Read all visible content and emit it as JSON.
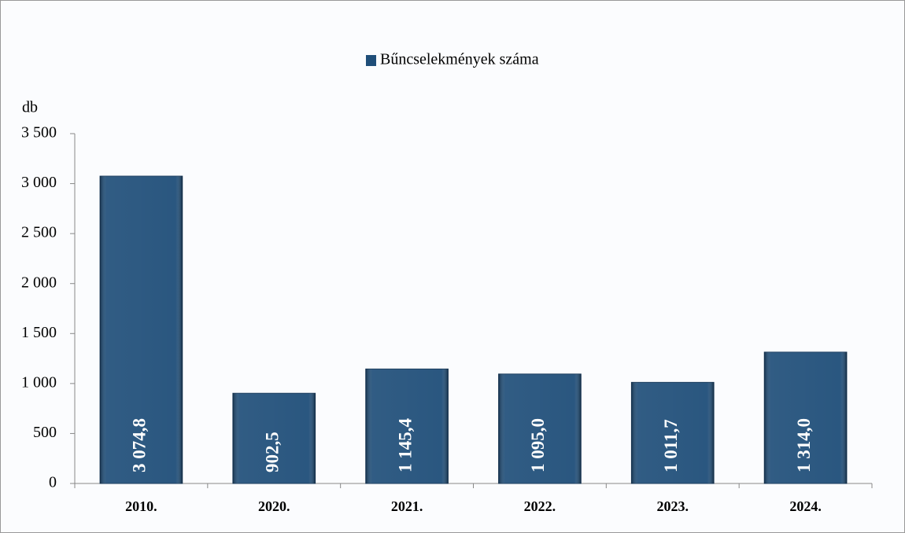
{
  "chart_data": {
    "type": "bar",
    "legend": "Bűncselekmények száma",
    "y_label": "db",
    "categories": [
      "2010.",
      "2020.",
      "2021.",
      "2022.",
      "2023.",
      "2024."
    ],
    "values": [
      3074.8,
      902.5,
      1145.4,
      1095.0,
      1011.7,
      1314.0
    ],
    "value_labels": [
      "3 074,8",
      "902,5",
      "1 145,4",
      "1 095,0",
      "1 011,7",
      "1 314,0"
    ],
    "color": "#1f4e79",
    "ylim": [
      0,
      3500
    ],
    "yticks": [
      0,
      500,
      {
        "value": 1000,
        "label": "1 000"
      },
      {
        "value": 1500,
        "label": "1 500"
      },
      {
        "value": 2000,
        "label": "2 000"
      },
      {
        "value": 2500,
        "label": "2 500"
      },
      {
        "value": 3000,
        "label": "3 000"
      },
      {
        "value": 3500,
        "label": "3 500"
      }
    ],
    "grid": false
  }
}
